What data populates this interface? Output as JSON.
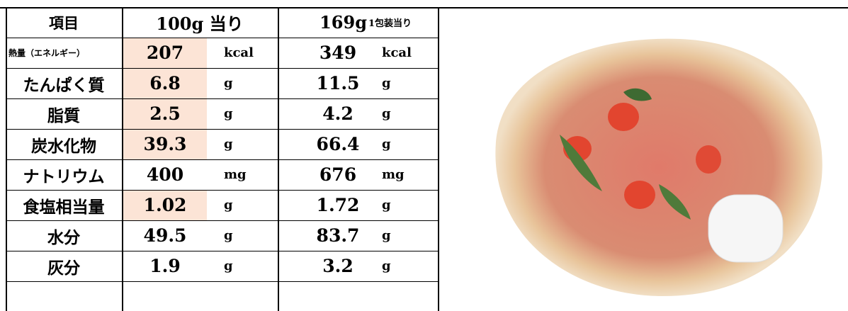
{
  "table": {
    "header": [
      "項目",
      "100g 当り",
      "169g",
      "1包装当り"
    ],
    "highlight_color": "#fce4d6",
    "rows": [
      {
        "item": "熱量（エネルギー）",
        "per_100g": "207",
        "unit": "kcal",
        "per_pack": "349",
        "pack_unit": "kcal",
        "highlighted": true
      },
      {
        "item": "たんぱく質",
        "per_100g": "6.8",
        "unit": "g",
        "per_pack": "11.5",
        "pack_unit": "g",
        "highlighted": true
      },
      {
        "item": "脂質",
        "per_100g": "2.5",
        "unit": "g",
        "per_pack": "4.2",
        "pack_unit": "g",
        "highlighted": true
      },
      {
        "item": "炭水化物",
        "per_100g": "39.3",
        "unit": "g",
        "per_pack": "66.4",
        "pack_unit": "g",
        "highlighted": true
      },
      {
        "item": "ナトリウム",
        "per_100g": "400",
        "unit": "mg",
        "per_pack": "676",
        "pack_unit": "mg",
        "highlighted": false
      },
      {
        "item": "食塩相当量",
        "per_100g": "1.02",
        "unit": "g",
        "per_pack": "1.72",
        "pack_unit": "g",
        "highlighted": true
      },
      {
        "item": "水分",
        "per_100g": "49.5",
        "unit": "g",
        "per_pack": "83.7",
        "pack_unit": "g",
        "highlighted": false
      },
      {
        "item": "灰分",
        "per_100g": "1.9",
        "unit": "g",
        "per_pack": "3.2",
        "pack_unit": "g",
        "highlighted": false
      }
    ]
  }
}
